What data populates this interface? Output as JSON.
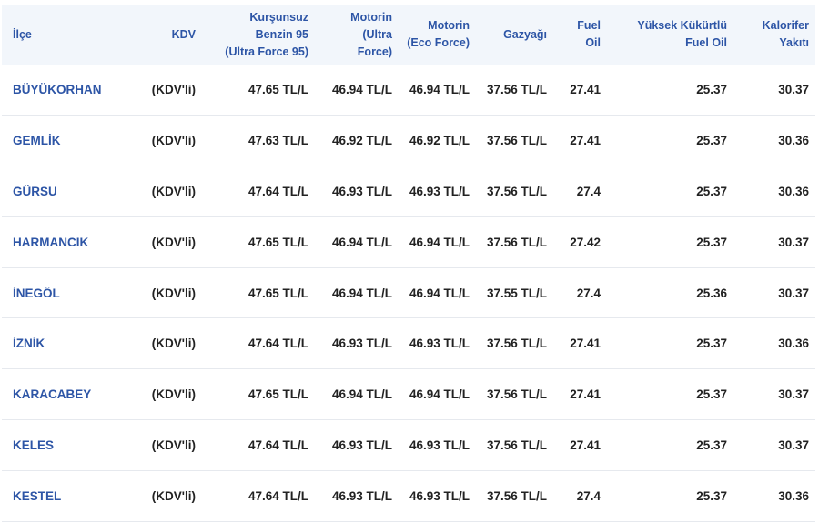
{
  "table": {
    "headers": [
      [
        "İlçe"
      ],
      [
        "KDV"
      ],
      [
        "Kurşunsuz",
        "Benzin 95",
        "(Ultra Force 95)"
      ],
      [
        "Motorin",
        "(Ultra",
        "Force)"
      ],
      [
        "Motorin",
        "(Eco Force)"
      ],
      [
        "Gazyağı"
      ],
      [
        "Fuel",
        "Oil"
      ],
      [
        "Yüksek Kükürtlü",
        "Fuel Oil"
      ],
      [
        "Kalorifer",
        "Yakıtı"
      ]
    ],
    "rows": [
      [
        "BÜYÜKORHAN",
        "(KDV'li)",
        "47.65 TL/L",
        "46.94 TL/L",
        "46.94 TL/L",
        "37.56 TL/L",
        "27.41",
        "25.37",
        "30.37"
      ],
      [
        "GEMLİK",
        "(KDV'li)",
        "47.63 TL/L",
        "46.92 TL/L",
        "46.92 TL/L",
        "37.56 TL/L",
        "27.41",
        "25.37",
        "30.36"
      ],
      [
        "GÜRSU",
        "(KDV'li)",
        "47.64 TL/L",
        "46.93 TL/L",
        "46.93 TL/L",
        "37.56 TL/L",
        "27.4",
        "25.37",
        "30.36"
      ],
      [
        "HARMANCIK",
        "(KDV'li)",
        "47.65 TL/L",
        "46.94 TL/L",
        "46.94 TL/L",
        "37.56 TL/L",
        "27.42",
        "25.37",
        "30.37"
      ],
      [
        "İNEGÖL",
        "(KDV'li)",
        "47.65 TL/L",
        "46.94 TL/L",
        "46.94 TL/L",
        "37.55 TL/L",
        "27.4",
        "25.36",
        "30.37"
      ],
      [
        "İZNİK",
        "(KDV'li)",
        "47.64 TL/L",
        "46.93 TL/L",
        "46.93 TL/L",
        "37.56 TL/L",
        "27.41",
        "25.37",
        "30.36"
      ],
      [
        "KARACABEY",
        "(KDV'li)",
        "47.65 TL/L",
        "46.94 TL/L",
        "46.94 TL/L",
        "37.56 TL/L",
        "27.41",
        "25.37",
        "30.37"
      ],
      [
        "KELES",
        "(KDV'li)",
        "47.64 TL/L",
        "46.93 TL/L",
        "46.93 TL/L",
        "37.56 TL/L",
        "27.41",
        "25.37",
        "30.37"
      ],
      [
        "KESTEL",
        "(KDV'li)",
        "47.64 TL/L",
        "46.93 TL/L",
        "46.93 TL/L",
        "37.56 TL/L",
        "27.4",
        "25.37",
        "30.36"
      ]
    ]
  },
  "colors": {
    "header_text": "#2d55a6",
    "header_bg": "#f2f6fb",
    "link_text": "#2d55a6",
    "value_text": "#222222",
    "row_divider": "#e6e9ee"
  }
}
